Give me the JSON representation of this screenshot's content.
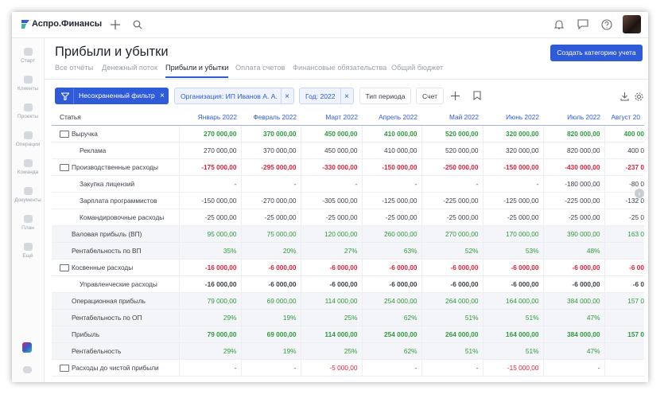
{
  "header": {
    "logo": "Аспро.Финансы"
  },
  "sidebar": {
    "items": [
      "Старт",
      "Клиенты",
      "Проекты",
      "Операции",
      "Команда",
      "Документы",
      "План",
      "Ещё"
    ]
  },
  "page": {
    "title": "Прибыли и убытки",
    "button": "Создать категорию учета",
    "tabs": [
      "Все отчёты",
      "Денежный поток",
      "Прибыли и убытки",
      "Оплата счетов",
      "Финансовые обязательства",
      "Общий бюджет"
    ]
  },
  "filters": {
    "saved": "Несохраненный фильтр",
    "chips": [
      "Организация: ИП Иванов А. А.",
      "Год: 2022"
    ],
    "buttons": [
      "Тип периода",
      "Счет"
    ]
  },
  "table": {
    "columns": [
      "Статья",
      "Январь 2022",
      "Февраль 2022",
      "Март 2022",
      "Апрель 2022",
      "Май 2022",
      "Июнь 2022",
      "Июль 2022",
      "Август 20"
    ],
    "rows": [
      [
        "Выручка",
        "270 000,00",
        "370 000,00",
        "450 000,00",
        "410 000,00",
        "520 000,00",
        "320 000,00",
        "820 000,00",
        "400 00"
      ],
      [
        "Реклама",
        "270 000,00",
        "370 000,00",
        "450 000,00",
        "410 000,00",
        "520 000,00",
        "320 000,00",
        "820 000,00",
        "400 0"
      ],
      [
        "Производственные расходы",
        "-175 000,00",
        "-295 000,00",
        "-330 000,00",
        "-150 000,00",
        "-250 000,00",
        "-150 000,00",
        "-430 000,00",
        "-237 0"
      ],
      [
        "Закупка лицензий",
        "-",
        "-",
        "-",
        "-",
        "-",
        "-",
        "-180 000,00",
        "-80 0"
      ],
      [
        "Зарплата программистов",
        "-150 000,00",
        "-270 000,00",
        "-305 000,00",
        "-125 000,00",
        "-225 000,00",
        "-125 000,00",
        "-225 000,00",
        "-132 0"
      ],
      [
        "Командировочные расходы",
        "-25 000,00",
        "-25 000,00",
        "-25 000,00",
        "-25 000,00",
        "-25 000,00",
        "-25 000,00",
        "-25 000,00",
        "-25 0"
      ],
      [
        "Валовая прибыль (ВП)",
        "95 000,00",
        "75 000,00",
        "120 000,00",
        "260 000,00",
        "270 000,00",
        "170 000,00",
        "390 000,00",
        "163 0"
      ],
      [
        "Рентабельность по ВП",
        "35%",
        "20%",
        "27%",
        "63%",
        "52%",
        "53%",
        "48%",
        null
      ],
      [
        "Косвенные расходы",
        "-16 000,00",
        "-6 000,00",
        "-6 000,00",
        "-6 000,00",
        "-6 000,00",
        "-6 000,00",
        "-6 000,00",
        "-6 00"
      ],
      [
        "Управленческие расходы",
        "-16 000,00",
        "-6 000,00",
        "-6 000,00",
        "-6 000,00",
        "-6 000,00",
        "-6 000,00",
        "-6 000,00",
        "-6 0"
      ],
      [
        "Операционная прибыль",
        "79 000,00",
        "69 000,00",
        "114 000,00",
        "254 000,00",
        "264 000,00",
        "164 000,00",
        "384 000,00",
        "157 0"
      ],
      [
        "Рентабельность по ОП",
        "29%",
        "19%",
        "25%",
        "62%",
        "51%",
        "51%",
        "47%",
        null
      ],
      [
        "Прибыль",
        "79 000,00",
        "69 000,00",
        "114 000,00",
        "254 000,00",
        "264 000,00",
        "164 000,00",
        "384 000,00",
        "157 0"
      ],
      [
        "Рентабельность",
        "29%",
        "19%",
        "25%",
        "62%",
        "51%",
        "51%",
        "47%",
        null
      ],
      [
        "Расходы до чистой прибыли",
        "-",
        "-",
        "-5 000,00",
        "-",
        "-",
        "-15 000,00",
        "-",
        null
      ]
    ]
  }
}
